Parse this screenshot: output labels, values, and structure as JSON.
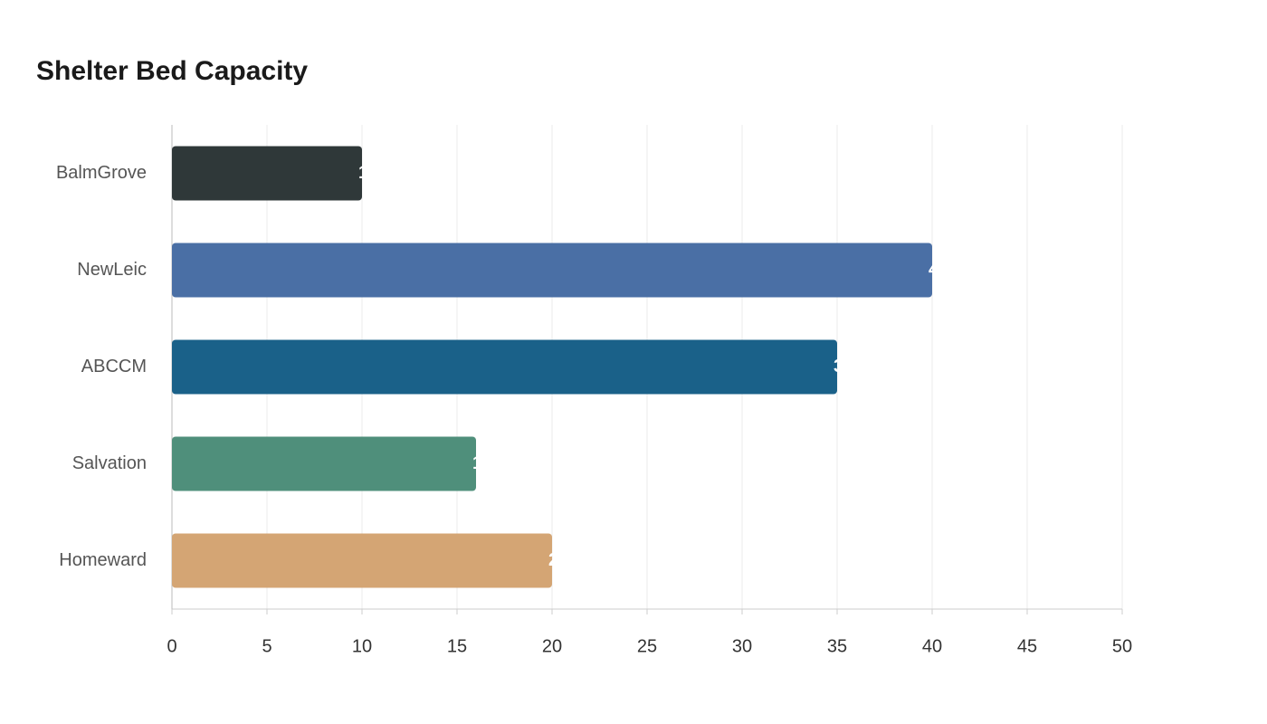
{
  "chart_data": {
    "type": "hbar",
    "title": "Shelter Bed Capacity",
    "categories": [
      "BalmGrove",
      "NewLeic",
      "ABCCM",
      "Salvation",
      "Homeward"
    ],
    "values": [
      10,
      40,
      35,
      16,
      20
    ],
    "colors": [
      "#2f3839",
      "#4a6fa5",
      "#1a6189",
      "#4f8f7b",
      "#d4a574"
    ],
    "xlim": [
      0,
      50
    ],
    "xticks": [
      0,
      5,
      10,
      15,
      20,
      25,
      30,
      35,
      40,
      45,
      50
    ],
    "grid": true
  }
}
